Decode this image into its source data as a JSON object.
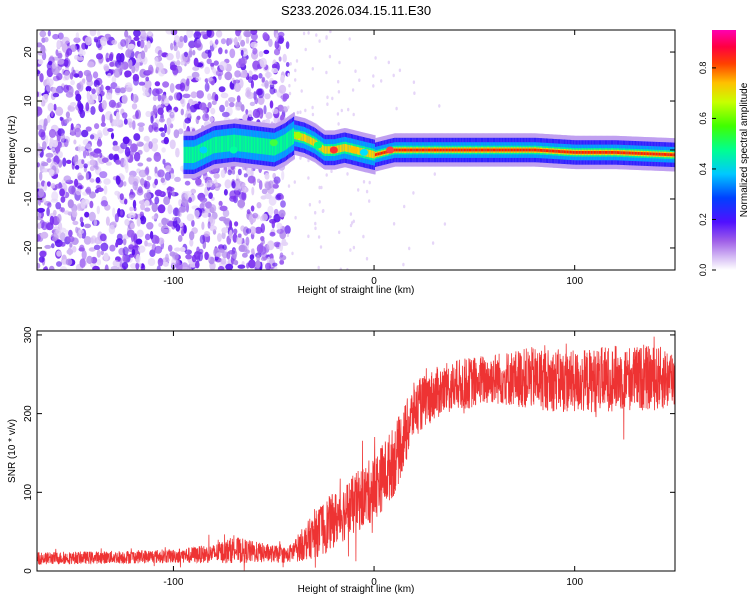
{
  "title": "S233.2026.034.15.11.E30",
  "chart_data": [
    {
      "type": "heatmap",
      "title": "S233.2026.034.15.11.E30",
      "xlabel": "Height of straight line (km)",
      "ylabel": "Frequency (Hz)",
      "xlim": [
        -168,
        150
      ],
      "ylim": [
        -24.5,
        24.5
      ],
      "xticks": [
        -100,
        0,
        100
      ],
      "yticks": [
        -20,
        -10,
        0,
        10,
        20
      ],
      "ridge": {
        "x": [
          -90,
          -80,
          -70,
          -60,
          -50,
          -45,
          -40,
          -35,
          -30,
          -25,
          -20,
          -15,
          -10,
          -5,
          0,
          5,
          10,
          20,
          40,
          60,
          80,
          100,
          120,
          150
        ],
        "freq": [
          -1,
          1,
          1.5,
          1,
          0.5,
          1.5,
          3,
          2.5,
          1.5,
          0,
          0,
          0.5,
          0,
          -0.5,
          -1,
          -0.5,
          0,
          0,
          0,
          0,
          0,
          -0.5,
          -0.5,
          -1
        ]
      },
      "noise_region_end_x": -43
    },
    {
      "type": "line",
      "xlabel": "Height of straight line (km)",
      "ylabel": "SNR (10 * v/v)",
      "xlim": [
        -168,
        150
      ],
      "ylim": [
        0,
        305
      ],
      "xticks": [
        -100,
        0,
        100
      ],
      "yticks": [
        0,
        100,
        200,
        300
      ],
      "color": "#ee3333",
      "envelope": {
        "x": [
          -168,
          -140,
          -100,
          -80,
          -70,
          -60,
          -50,
          -43,
          -35,
          -25,
          -20,
          -12,
          -5,
          0,
          10,
          15,
          20,
          30,
          40,
          60,
          80,
          100,
          120,
          150
        ],
        "center": [
          16,
          17,
          19,
          22,
          27,
          24,
          22,
          20,
          35,
          55,
          65,
          80,
          95,
          105,
          140,
          170,
          205,
          225,
          235,
          245,
          245,
          240,
          245,
          245
        ],
        "spread": [
          8,
          8,
          9,
          12,
          17,
          14,
          11,
          10,
          22,
          35,
          35,
          38,
          40,
          42,
          45,
          40,
          35,
          33,
          33,
          33,
          40,
          40,
          42,
          40
        ]
      }
    }
  ],
  "colorbar": {
    "label": "Normalized spectral amplitude",
    "min": 0,
    "max": 0.95,
    "ticks": [
      "0.0",
      "0.2",
      "0.4",
      "0.6",
      "0.8"
    ],
    "colors": [
      "#ffffff",
      "#c8a8f0",
      "#8a2be2",
      "#3000ff",
      "#0060ff",
      "#00e0ff",
      "#00ff60",
      "#a0ff00",
      "#ffff00",
      "#ff8000",
      "#ff0000",
      "#ff00a0"
    ]
  }
}
